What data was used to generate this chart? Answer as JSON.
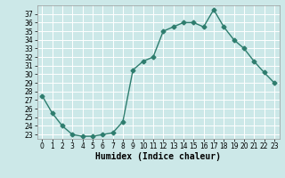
{
  "x": [
    0,
    1,
    2,
    3,
    4,
    5,
    6,
    7,
    8,
    9,
    10,
    11,
    12,
    13,
    14,
    15,
    16,
    17,
    18,
    19,
    20,
    21,
    22,
    23
  ],
  "y": [
    27.5,
    25.5,
    24.0,
    23.0,
    22.8,
    22.8,
    23.0,
    23.2,
    24.5,
    30.5,
    31.5,
    32.0,
    35.0,
    35.5,
    36.0,
    36.0,
    35.5,
    37.5,
    35.5,
    34.0,
    33.0,
    31.5,
    30.2,
    29.0
  ],
  "line_color": "#2e7d6e",
  "marker": "D",
  "marker_size": 2.5,
  "xlabel": "Humidex (Indice chaleur)",
  "xlim": [
    -0.5,
    23.5
  ],
  "ylim": [
    22.5,
    38
  ],
  "yticks": [
    23,
    24,
    25,
    26,
    27,
    28,
    29,
    30,
    31,
    32,
    33,
    34,
    35,
    36,
    37
  ],
  "xticks": [
    0,
    1,
    2,
    3,
    4,
    5,
    6,
    7,
    8,
    9,
    10,
    11,
    12,
    13,
    14,
    15,
    16,
    17,
    18,
    19,
    20,
    21,
    22,
    23
  ],
  "bg_color": "#cce8e8",
  "grid_color": "#ffffff",
  "xlabel_fontsize": 7,
  "tick_fontsize": 5.5,
  "linewidth": 1.0
}
